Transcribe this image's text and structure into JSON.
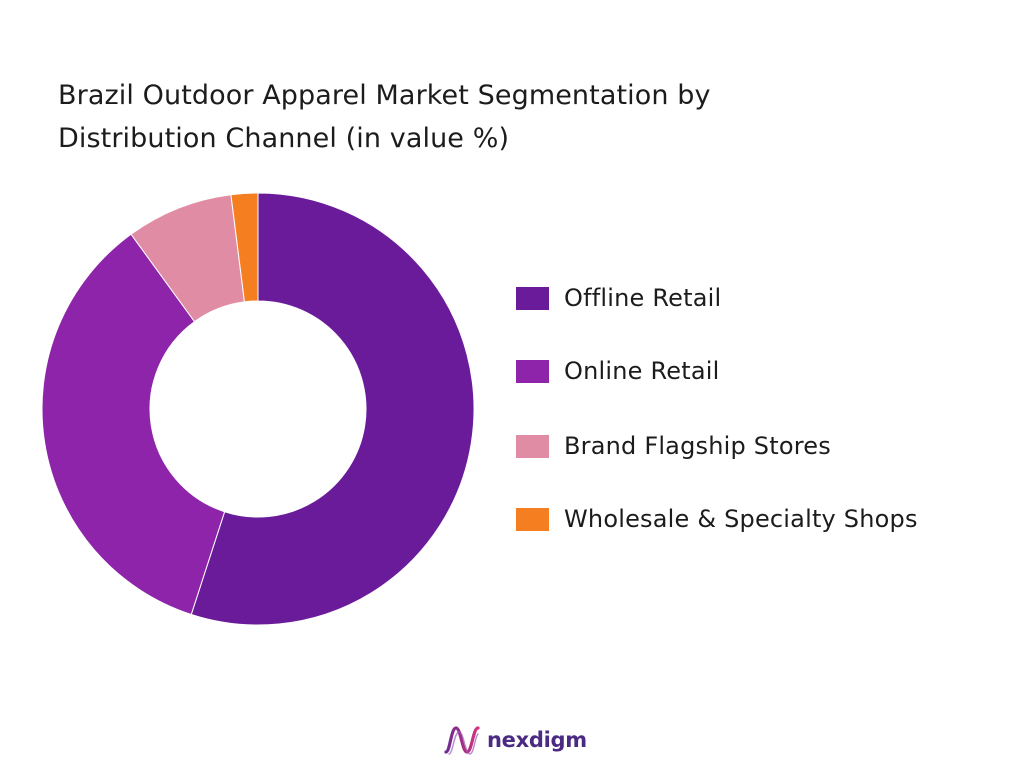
{
  "chart_data": {
    "type": "pie",
    "variant": "donut",
    "title_lines": [
      "Brazil Outdoor Apparel Market Segmentation by",
      "Distribution Channel (in value %)"
    ],
    "series": [
      {
        "name": "Offline Retail",
        "value": 55,
        "color": "#6a1b9a"
      },
      {
        "name": "Online Retail",
        "value": 35,
        "color": "#8e24aa"
      },
      {
        "name": "Brand Flagship Stores",
        "value": 8,
        "color": "#e08ca4"
      },
      {
        "name": "Wholesale & Specialty Shops",
        "value": 2,
        "color": "#f57f20"
      }
    ],
    "legend_position": "right"
  },
  "brand": {
    "logo_text": "nexdigm",
    "logo_icon": "nexdigm-wave-icon",
    "logo_color": "#4a2a82"
  }
}
